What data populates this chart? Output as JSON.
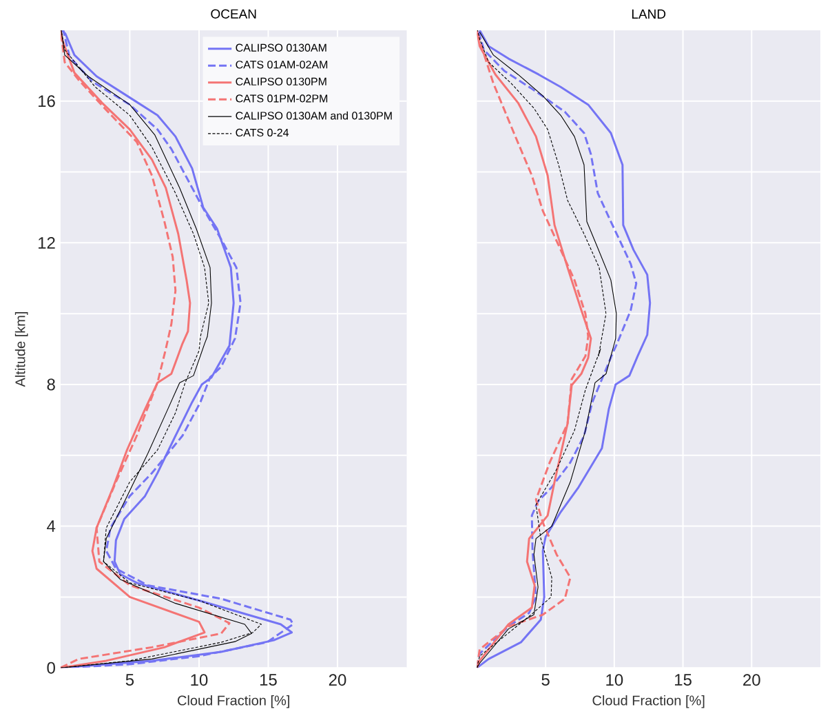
{
  "chart_data": [
    {
      "type": "line",
      "title": "OCEAN",
      "xlabel": "Cloud Fraction [%]",
      "ylabel": "Altitude [km]",
      "xlim": [
        0,
        25
      ],
      "ylim": [
        0,
        18
      ],
      "xticks": [
        5,
        10,
        15,
        20
      ],
      "yticks": [
        0,
        {
          "value": 2,
          "label": null
        },
        4,
        {
          "value": 6,
          "label": null
        },
        8,
        {
          "value": 10,
          "label": null
        },
        12,
        {
          "value": 14,
          "label": null
        },
        16
      ],
      "grid": true,
      "legend": "top right",
      "series": [
        {
          "name": "CALIPSO 0130AM",
          "color": "#7474f4",
          "line_style": "solid",
          "x": [
            0,
            6.6,
            11.6,
            15.4,
            16.7,
            15.9,
            10.0,
            5.5,
            4.3,
            3.9,
            4.0,
            4.6,
            6.1,
            7.0,
            8.3,
            9.5,
            10.2,
            10.9,
            12.2,
            12.5,
            12.3,
            11.3,
            10.3,
            9.5,
            8.3,
            7.0,
            5.0,
            2.6,
            1.0,
            0.35,
            0.1
          ],
          "values": [
            0,
            0.2,
            0.45,
            0.78,
            1.0,
            1.23,
            1.9,
            2.4,
            2.65,
            3.0,
            3.6,
            4.2,
            4.85,
            5.5,
            6.55,
            7.5,
            8.0,
            8.2,
            9.1,
            10.3,
            11.3,
            12.4,
            13.0,
            14.1,
            15.0,
            15.6,
            16.1,
            16.7,
            17.3,
            17.9,
            18
          ]
        },
        {
          "name": "CATS 01AM-02AM",
          "color": "#7474f4",
          "line_style": "dashed",
          "x": [
            0,
            5.0,
            10.0,
            14.9,
            16.8,
            16.6,
            11.6,
            6.3,
            4.0,
            3.3,
            3.6,
            5.0,
            6.6,
            8.8,
            10.1,
            10.8,
            11.6,
            12.6,
            13.0,
            12.7,
            11.6,
            10.4,
            9.3,
            8.0,
            7.0,
            5.0,
            2.3,
            0.65,
            0.2
          ],
          "values": [
            0,
            0.1,
            0.33,
            0.72,
            1.23,
            1.36,
            1.95,
            2.33,
            2.8,
            3.3,
            3.95,
            4.85,
            5.5,
            6.55,
            7.5,
            8.2,
            8.5,
            9.3,
            10.3,
            11.3,
            12.1,
            12.9,
            13.7,
            14.65,
            15.2,
            15.9,
            16.55,
            17.25,
            18
          ]
        },
        {
          "name": "CALIPSO 0130PM",
          "color": "#f47474",
          "line_style": "solid",
          "x": [
            0,
            3.3,
            7.5,
            10.4,
            10.0,
            5.0,
            2.6,
            2.3,
            2.6,
            3.8,
            4.8,
            6.1,
            7.0,
            8.0,
            8.8,
            9.2,
            9.35,
            9.1,
            8.5,
            7.6,
            6.6,
            5.0,
            3.0,
            1.0,
            0.15,
            0.0
          ],
          "values": [
            0,
            0.2,
            0.58,
            1.0,
            1.3,
            2.0,
            2.8,
            3.3,
            3.95,
            5.1,
            6.15,
            7.3,
            8.05,
            8.3,
            9.15,
            9.5,
            10.3,
            10.95,
            12.25,
            13.55,
            14.35,
            15.2,
            15.95,
            16.8,
            17.7,
            18
          ]
        },
        {
          "name": "CATS 01PM-02PM",
          "color": "#f47474",
          "line_style": "dashed",
          "x": [
            0,
            1.3,
            6.6,
            11.6,
            12.2,
            10.0,
            5.0,
            2.8,
            2.6,
            4.0,
            5.5,
            7.0,
            7.6,
            8.0,
            8.3,
            8.1,
            7.5,
            6.6,
            5.5,
            3.3,
            1.3,
            0.3,
            0.0
          ],
          "values": [
            0,
            0.25,
            0.58,
            0.97,
            1.26,
            1.7,
            2.33,
            3.0,
            3.95,
            5.25,
            6.55,
            8.05,
            9.0,
            9.7,
            10.65,
            11.6,
            12.6,
            13.9,
            14.85,
            15.75,
            16.6,
            17.1,
            18
          ]
        },
        {
          "name": "CALIPSO 0130AM and 0130PM",
          "color": "#000000",
          "line_style": "solid",
          "x": [
            0,
            6.6,
            12.6,
            13.8,
            13.3,
            8.3,
            4.3,
            3.1,
            3.3,
            4.5,
            6.3,
            7.8,
            8.6,
            9.6,
            10.4,
            10.6,
            10.9,
            10.8,
            9.8,
            8.6,
            6.8,
            5.0,
            2.0,
            0.3,
            0.05
          ],
          "values": [
            0,
            0.25,
            0.74,
            0.97,
            1.23,
            1.82,
            2.5,
            3.0,
            3.65,
            4.6,
            6.05,
            7.35,
            8.05,
            8.25,
            9.15,
            9.35,
            10.3,
            11.3,
            12.4,
            13.55,
            15.05,
            15.9,
            16.7,
            17.3,
            18
          ]
        },
        {
          "name": "CATS 0-24",
          "color": "#000000",
          "line_style": "dashed",
          "x": [
            0,
            5.0,
            11.6,
            13.9,
            14.5,
            10.0,
            5.0,
            3.1,
            3.3,
            5.0,
            7.0,
            8.3,
            9.0,
            10.0,
            10.1,
            10.7,
            10.4,
            9.6,
            8.3,
            6.6,
            5.0,
            2.5,
            0.3,
            0.05
          ],
          "values": [
            0,
            0.2,
            0.72,
            1.0,
            1.23,
            1.9,
            2.4,
            3.0,
            3.95,
            5.25,
            6.15,
            7.2,
            8.05,
            8.95,
            9.35,
            10.3,
            11.3,
            12.25,
            13.4,
            14.7,
            15.6,
            16.4,
            17.45,
            18
          ]
        }
      ]
    },
    {
      "type": "line",
      "title": "LAND",
      "xlabel": "Cloud Fraction [%]",
      "xlim": [
        0,
        25
      ],
      "ylim": [
        0,
        18
      ],
      "xticks": [
        5,
        10,
        15,
        20
      ],
      "yticks": [
        0,
        {
          "value": 2,
          "label": null
        },
        4,
        {
          "value": 6,
          "label": null
        },
        8,
        {
          "value": 10,
          "label": null
        },
        12,
        {
          "value": 14,
          "label": null
        },
        16
      ],
      "tick_labels": "x",
      "grid": true,
      "series": [
        {
          "color": "#7474f4",
          "line_style": "solid",
          "x": [
            0,
            0.85,
            3.2,
            4.65,
            4.9,
            4.8,
            5.0,
            6.1,
            7.4,
            9.1,
            9.6,
            10.1,
            11.1,
            11.7,
            12.4,
            12.6,
            12.4,
            11.4,
            10.65,
            10.6,
            9.75,
            8.1,
            6.1,
            4.5,
            2.3,
            0.85,
            0.2
          ],
          "values": [
            0,
            0.25,
            0.72,
            1.36,
            2.0,
            3.3,
            3.7,
            4.4,
            5.1,
            6.2,
            7.3,
            8.0,
            8.25,
            8.8,
            9.4,
            10.3,
            11.1,
            11.8,
            12.5,
            14.2,
            15.1,
            15.9,
            16.4,
            16.75,
            17.2,
            17.55,
            18
          ]
        },
        {
          "color": "#7474f4",
          "line_style": "dashed",
          "x": [
            0,
            0.2,
            2.3,
            3.8,
            4.3,
            4.05,
            4.0,
            4.45,
            5.45,
            6.8,
            7.8,
            8.4,
            9.1,
            9.9,
            10.2,
            11.2,
            11.6,
            11.2,
            10.6,
            9.75,
            8.8,
            8.3,
            7.8,
            6.4,
            4.0,
            2.0,
            0.5,
            0.1
          ],
          "values": [
            0,
            0.4,
            1.17,
            1.55,
            2.0,
            3.3,
            4.3,
            4.7,
            5.1,
            5.8,
            6.55,
            7.5,
            8.15,
            8.9,
            9.15,
            10.1,
            10.85,
            11.4,
            11.9,
            12.6,
            13.4,
            14.5,
            15.1,
            15.7,
            16.35,
            16.85,
            17.45,
            18
          ]
        },
        {
          "color": "#f47474",
          "line_style": "solid",
          "x": [
            0,
            0.2,
            2.3,
            4.0,
            4.2,
            3.65,
            3.8,
            5.15,
            5.65,
            6.6,
            6.9,
            7.6,
            8.1,
            8.3,
            7.6,
            6.6,
            5.65,
            5.15,
            4.3,
            3.0,
            1.35,
            0.2,
            0.0
          ],
          "values": [
            0,
            0.2,
            1.23,
            1.7,
            2.33,
            3.0,
            3.65,
            4.3,
            5.25,
            6.9,
            7.98,
            8.3,
            8.75,
            9.3,
            10.1,
            11.3,
            12.5,
            13.9,
            15.0,
            15.95,
            16.75,
            17.55,
            18
          ]
        },
        {
          "color": "#f47474",
          "line_style": "dashed",
          "x": [
            0,
            0.2,
            2.3,
            4.8,
            6.4,
            6.8,
            5.8,
            4.8,
            4.3,
            5.3,
            6.6,
            6.9,
            7.9,
            8.1,
            7.9,
            7.1,
            6.1,
            4.8,
            4.0,
            2.8,
            1.2,
            0.2,
            0.0
          ],
          "values": [
            0,
            0.52,
            1.17,
            1.5,
            1.95,
            2.55,
            3.2,
            4.1,
            4.75,
            5.8,
            6.9,
            8.15,
            8.8,
            9.35,
            10.0,
            10.95,
            11.8,
            12.9,
            13.9,
            15.0,
            16.5,
            17.7,
            18
          ]
        },
        {
          "color": "#000000",
          "line_style": "solid",
          "x": [
            0,
            0.2,
            2.3,
            4.15,
            4.45,
            4.15,
            4.3,
            5.45,
            6.8,
            7.9,
            8.6,
            9.4,
            10.0,
            10.1,
            10.15,
            9.75,
            8.8,
            8.0,
            7.8,
            7.1,
            6.1,
            4.8,
            3.0,
            1.2,
            0.2
          ],
          "values": [
            0,
            0.13,
            1.1,
            1.5,
            2.28,
            3.2,
            3.65,
            4.0,
            5.25,
            6.7,
            8.05,
            8.3,
            9.15,
            9.3,
            10.0,
            10.95,
            11.85,
            12.6,
            14.2,
            15.0,
            15.6,
            16.15,
            16.75,
            17.3,
            17.95
          ]
        },
        {
          "color": "#000000",
          "line_style": "dashed",
          "x": [
            0,
            0.2,
            3.95,
            5.4,
            5.45,
            4.65,
            4.3,
            5.8,
            7.1,
            7.9,
            9.0,
            8.85,
            9.4,
            8.9,
            7.8,
            6.6,
            5.95,
            5.15,
            4.15,
            2.5,
            0.85,
            0.2,
            0.05
          ],
          "values": [
            0,
            0.33,
            1.5,
            2.0,
            2.55,
            3.65,
            4.6,
            5.6,
            6.7,
            7.85,
            9.0,
            8.8,
            10.0,
            11.3,
            12.25,
            13.2,
            14.2,
            15.2,
            15.8,
            16.5,
            17.1,
            17.75,
            18
          ]
        }
      ]
    }
  ]
}
